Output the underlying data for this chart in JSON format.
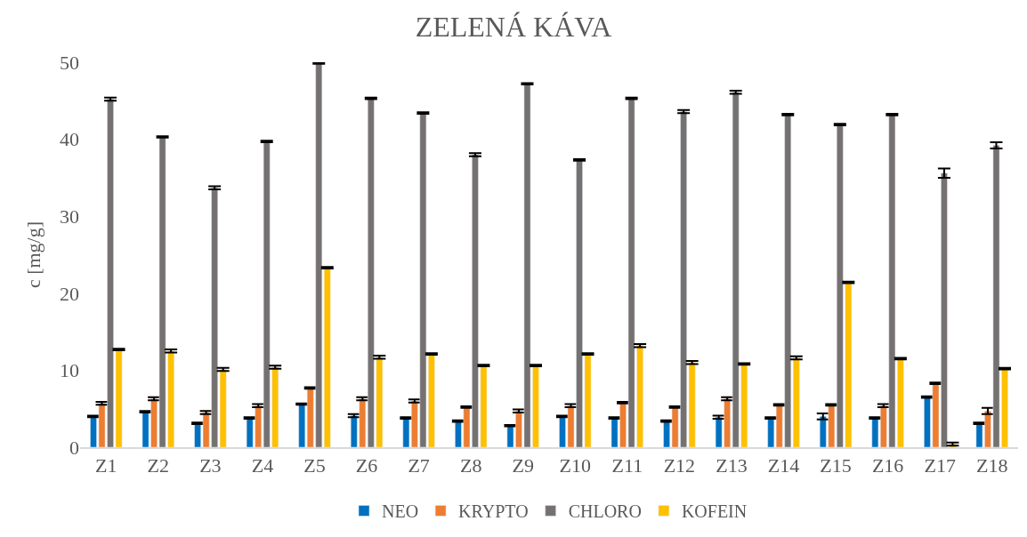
{
  "chart_data": {
    "type": "bar",
    "title": "ZELENÁ KÁVA",
    "ylabel": "c [mg/g]",
    "categories": [
      "Z1",
      "Z2",
      "Z3",
      "Z4",
      "Z5",
      "Z6",
      "Z7",
      "Z8",
      "Z9",
      "Z10",
      "Z11",
      "Z12",
      "Z13",
      "Z14",
      "Z15",
      "Z16",
      "Z17",
      "Z18"
    ],
    "series": [
      {
        "name": "NEO",
        "color": "#0070c0",
        "values": [
          4.0,
          4.6,
          3.1,
          3.8,
          5.6,
          4.1,
          3.8,
          3.4,
          2.8,
          4.0,
          3.8,
          3.4,
          3.9,
          3.8,
          4.0,
          3.8,
          6.5,
          3.1
        ],
        "errors": [
          0.1,
          0.1,
          0.1,
          0.1,
          0.1,
          0.2,
          0.1,
          0.1,
          0.1,
          0.1,
          0.1,
          0.1,
          0.2,
          0.1,
          0.4,
          0.1,
          0.1,
          0.1
        ]
      },
      {
        "name": "KRYPTO",
        "color": "#ed7d31",
        "values": [
          5.7,
          6.3,
          4.5,
          5.4,
          7.7,
          6.3,
          6.0,
          5.2,
          4.7,
          5.4,
          5.8,
          5.2,
          6.3,
          5.5,
          5.5,
          5.4,
          8.3,
          4.7
        ],
        "errors": [
          0.2,
          0.2,
          0.2,
          0.2,
          0.1,
          0.2,
          0.2,
          0.1,
          0.2,
          0.2,
          0.1,
          0.1,
          0.2,
          0.1,
          0.1,
          0.2,
          0.1,
          0.4
        ]
      },
      {
        "name": "CHLORO",
        "color": "#767171",
        "values": [
          45.2,
          40.3,
          33.7,
          39.7,
          49.9,
          45.3,
          43.4,
          38.0,
          47.2,
          37.3,
          45.3,
          43.6,
          46.1,
          43.2,
          41.9,
          43.2,
          35.6,
          39.2
        ],
        "errors": [
          0.2,
          0.1,
          0.2,
          0.1,
          0.1,
          0.1,
          0.1,
          0.2,
          0.1,
          0.1,
          0.1,
          0.2,
          0.2,
          0.1,
          0.1,
          0.1,
          0.6,
          0.4
        ]
      },
      {
        "name": "KOFEIN",
        "color": "#ffc000",
        "values": [
          12.7,
          12.5,
          10.1,
          10.4,
          23.3,
          11.7,
          12.1,
          10.6,
          10.6,
          12.1,
          13.2,
          11.0,
          10.8,
          11.6,
          21.4,
          11.5,
          0.4,
          10.2
        ],
        "errors": [
          0.1,
          0.2,
          0.2,
          0.2,
          0.1,
          0.2,
          0.1,
          0.1,
          0.1,
          0.1,
          0.2,
          0.2,
          0.1,
          0.2,
          0.1,
          0.1,
          0.2,
          0.1
        ]
      }
    ],
    "ylim": [
      0,
      50
    ],
    "yticks": [
      0,
      10,
      20,
      30,
      40,
      50
    ],
    "legend": "bottom"
  }
}
